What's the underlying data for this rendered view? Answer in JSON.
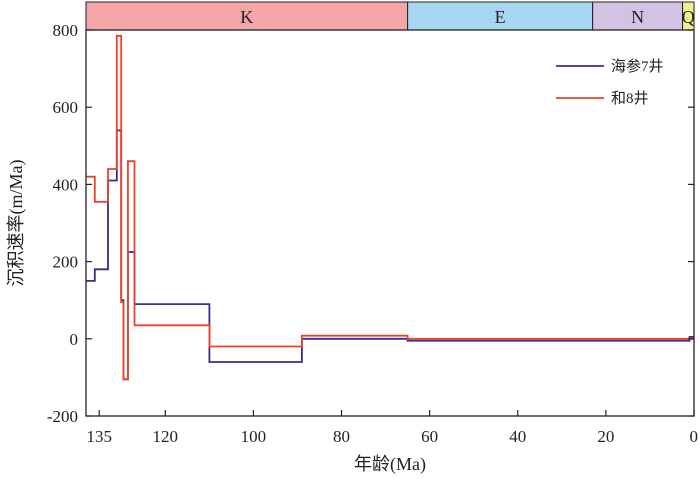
{
  "chart_data": {
    "type": "line",
    "step": true,
    "ylabel": "沉积速率(m/Ma)",
    "xlabel": "年龄(Ma)",
    "xlim": [
      138,
      0
    ],
    "ylim": [
      -200,
      800
    ],
    "x_reversed": true,
    "grid": false,
    "legend_position": "top-right",
    "xticks": [
      {
        "v": 135,
        "label": "135"
      },
      {
        "v": 120,
        "label": "120"
      },
      {
        "v": 100,
        "label": "100"
      },
      {
        "v": 80,
        "label": "80"
      },
      {
        "v": 60,
        "label": "60"
      },
      {
        "v": 40,
        "label": "40"
      },
      {
        "v": 20,
        "label": "20"
      },
      {
        "v": 0,
        "label": "0"
      }
    ],
    "yticks": [
      {
        "v": 800,
        "label": "800"
      },
      {
        "v": 600,
        "label": "600"
      },
      {
        "v": 400,
        "label": "400"
      },
      {
        "v": 200,
        "label": "200"
      },
      {
        "v": 0,
        "label": "0"
      },
      {
        "v": -200,
        "label": "-200"
      }
    ],
    "periods": [
      {
        "label": "K",
        "start": 138,
        "end": 65,
        "color": "#f5a5a8"
      },
      {
        "label": "E",
        "start": 65,
        "end": 23,
        "color": "#a7d6f0"
      },
      {
        "label": "N",
        "start": 23,
        "end": 2.6,
        "color": "#d4c2e4"
      },
      {
        "label": "Q",
        "start": 2.6,
        "end": 0,
        "color": "#f2ee8e"
      }
    ],
    "series": [
      {
        "name": "海参7井",
        "color": "#3c2a8c",
        "points": [
          [
            138,
            150
          ],
          [
            136,
            150
          ],
          [
            136,
            180
          ],
          [
            133,
            180
          ],
          [
            133,
            410
          ],
          [
            131,
            410
          ],
          [
            131,
            540
          ],
          [
            130,
            540
          ],
          [
            130,
            100
          ],
          [
            129.5,
            100
          ],
          [
            129.5,
            -105
          ],
          [
            128.5,
            -105
          ],
          [
            128.5,
            225
          ],
          [
            127,
            225
          ],
          [
            127,
            90
          ],
          [
            110,
            90
          ],
          [
            110,
            -60
          ],
          [
            89,
            -60
          ],
          [
            89,
            0
          ],
          [
            65,
            0
          ],
          [
            65,
            -5
          ],
          [
            1,
            -5
          ],
          [
            1,
            5
          ],
          [
            0,
            5
          ]
        ]
      },
      {
        "name": "和8井",
        "color": "#e8442a",
        "points": [
          [
            138,
            420
          ],
          [
            136,
            420
          ],
          [
            136,
            355
          ],
          [
            133,
            355
          ],
          [
            133,
            440
          ],
          [
            131,
            440
          ],
          [
            131,
            785
          ],
          [
            130,
            785
          ],
          [
            130,
            95
          ],
          [
            129.5,
            95
          ],
          [
            129.5,
            -105
          ],
          [
            128.5,
            -105
          ],
          [
            128.5,
            460
          ],
          [
            127,
            460
          ],
          [
            127,
            35
          ],
          [
            110,
            35
          ],
          [
            110,
            -20
          ],
          [
            89,
            -20
          ],
          [
            89,
            8
          ],
          [
            65,
            8
          ],
          [
            65,
            0
          ],
          [
            0,
            0
          ]
        ]
      }
    ]
  }
}
